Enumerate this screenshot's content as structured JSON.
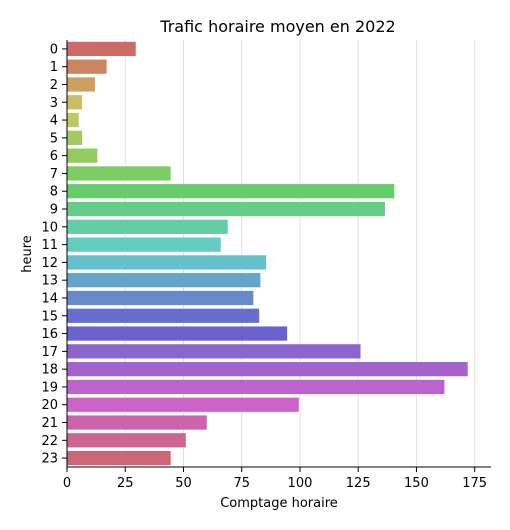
{
  "chart_data": {
    "type": "bar",
    "orientation": "horizontal",
    "title": "Trafic horaire moyen en 2022",
    "xlabel": "Comptage horaire",
    "ylabel": "heure",
    "xlim": [
      0,
      182
    ],
    "xticks": [
      0,
      25,
      50,
      75,
      100,
      125,
      150,
      175
    ],
    "grid": "vertical",
    "categories": [
      "0",
      "1",
      "2",
      "3",
      "4",
      "5",
      "6",
      "7",
      "8",
      "9",
      "10",
      "11",
      "12",
      "13",
      "14",
      "15",
      "16",
      "17",
      "18",
      "19",
      "20",
      "21",
      "22",
      "23"
    ],
    "values": [
      29.5,
      17,
      12,
      6.5,
      5,
      6.5,
      13,
      44.5,
      140.5,
      136.5,
      69,
      66,
      85.5,
      83,
      80,
      82.5,
      94.5,
      126,
      172,
      162,
      99.5,
      60,
      51,
      44.5
    ],
    "colors": [
      "#cc6b66",
      "#cd8462",
      "#cca063",
      "#cbbd62",
      "#bdc962",
      "#a3cb60",
      "#93cb61",
      "#7ccd65",
      "#67cd6c",
      "#65cd88",
      "#65cca5",
      "#65ccc1",
      "#64c1cc",
      "#64a5cc",
      "#6689cc",
      "#676ecd",
      "#6b62cd",
      "#8b64cd",
      "#a363cd",
      "#bc62cd",
      "#cc63c9",
      "#cc63ac",
      "#cc6590",
      "#cc6575"
    ]
  }
}
